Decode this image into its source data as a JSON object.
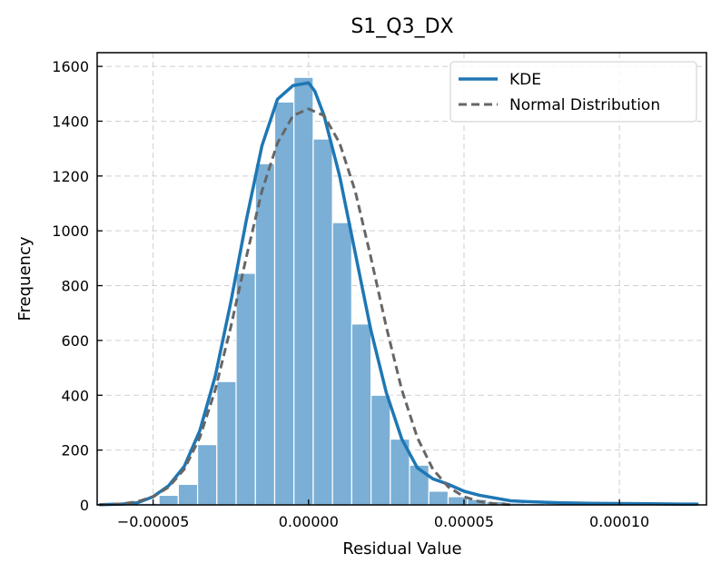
{
  "chart_data": {
    "type": "bar",
    "title": "S1_Q3_DX",
    "xlabel": "Residual Value",
    "ylabel": "Frequency",
    "xlim": [
      -6.8e-05,
      0.000128
    ],
    "ylim": [
      0,
      1650
    ],
    "grid": true,
    "legend_placement": "top-right",
    "x_ticks": [
      {
        "value": -5e-05,
        "label": "−0.00005"
      },
      {
        "value": 0.0,
        "label": "0.00000"
      },
      {
        "value": 5e-05,
        "label": "0.00005"
      },
      {
        "value": 0.0001,
        "label": "0.00010"
      }
    ],
    "y_ticks": [
      {
        "value": 0,
        "label": "0"
      },
      {
        "value": 200,
        "label": "200"
      },
      {
        "value": 400,
        "label": "400"
      },
      {
        "value": 600,
        "label": "600"
      },
      {
        "value": 800,
        "label": "800"
      },
      {
        "value": 1000,
        "label": "1000"
      },
      {
        "value": 1200,
        "label": "1200"
      },
      {
        "value": 1400,
        "label": "1400"
      },
      {
        "value": 1600,
        "label": "1600"
      }
    ],
    "bin_width": 6.2e-06,
    "bins": [
      {
        "x": -6.67e-05,
        "value": 2
      },
      {
        "x": -6.05e-05,
        "value": 3
      },
      {
        "x": -5.43e-05,
        "value": 6
      },
      {
        "x": -4.81e-05,
        "value": 35
      },
      {
        "x": -4.19e-05,
        "value": 75
      },
      {
        "x": -3.57e-05,
        "value": 220
      },
      {
        "x": -2.95e-05,
        "value": 450
      },
      {
        "x": -2.33e-05,
        "value": 845
      },
      {
        "x": -1.71e-05,
        "value": 1245
      },
      {
        "x": -1.09e-05,
        "value": 1470
      },
      {
        "x": -4.7e-06,
        "value": 1560
      },
      {
        "x": 1.5e-06,
        "value": 1335
      },
      {
        "x": 7.7e-06,
        "value": 1030
      },
      {
        "x": 1.39e-05,
        "value": 660
      },
      {
        "x": 2.01e-05,
        "value": 400
      },
      {
        "x": 2.63e-05,
        "value": 240
      },
      {
        "x": 3.25e-05,
        "value": 145
      },
      {
        "x": 3.87e-05,
        "value": 50
      },
      {
        "x": 4.49e-05,
        "value": 30
      },
      {
        "x": 5.11e-05,
        "value": 20
      },
      {
        "x": 5.73e-05,
        "value": 12
      },
      {
        "x": 6.35e-05,
        "value": 7
      },
      {
        "x": 6.97e-05,
        "value": 5
      },
      {
        "x": 7.59e-05,
        "value": 3
      },
      {
        "x": 8.21e-05,
        "value": 2
      },
      {
        "x": 8.83e-05,
        "value": 2
      },
      {
        "x": 9.45e-05,
        "value": 1
      },
      {
        "x": 0.0001007,
        "value": 1
      },
      {
        "x": 0.0001069,
        "value": 1
      },
      {
        "x": 0.0001131,
        "value": 1
      },
      {
        "x": 0.0001193,
        "value": 1
      }
    ],
    "series": [
      {
        "name": "KDE",
        "style": "solid",
        "color": "#1f77b4",
        "points": [
          [
            -6.7e-05,
            1
          ],
          [
            -6e-05,
            3
          ],
          [
            -5.5e-05,
            8
          ],
          [
            -5e-05,
            30
          ],
          [
            -4.5e-05,
            70
          ],
          [
            -4e-05,
            140
          ],
          [
            -3.5e-05,
            270
          ],
          [
            -3e-05,
            470
          ],
          [
            -2.5e-05,
            740
          ],
          [
            -2e-05,
            1040
          ],
          [
            -1.5e-05,
            1310
          ],
          [
            -1e-05,
            1480
          ],
          [
            -5e-06,
            1530
          ],
          [
            0.0,
            1540
          ],
          [
            2e-06,
            1510
          ],
          [
            5e-06,
            1420
          ],
          [
            1e-05,
            1200
          ],
          [
            1.5e-05,
            920
          ],
          [
            2e-05,
            640
          ],
          [
            2.5e-05,
            410
          ],
          [
            3e-05,
            240
          ],
          [
            3.5e-05,
            135
          ],
          [
            4e-05,
            95
          ],
          [
            4.5e-05,
            75
          ],
          [
            5e-05,
            50
          ],
          [
            5.5e-05,
            35
          ],
          [
            6e-05,
            25
          ],
          [
            6.5e-05,
            15
          ],
          [
            7e-05,
            12
          ],
          [
            8e-05,
            8
          ],
          [
            9e-05,
            6
          ],
          [
            0.0001,
            5
          ],
          [
            0.00011,
            4
          ],
          [
            0.00012,
            3
          ],
          [
            0.000125,
            3
          ]
        ]
      },
      {
        "name": "Normal Distribution",
        "style": "dashed",
        "color": "#666666",
        "points": [
          [
            -6.7e-05,
            1
          ],
          [
            -6e-05,
            4
          ],
          [
            -5.5e-05,
            12
          ],
          [
            -5e-05,
            30
          ],
          [
            -4.5e-05,
            65
          ],
          [
            -4e-05,
            130
          ],
          [
            -3.5e-05,
            245
          ],
          [
            -3e-05,
            420
          ],
          [
            -2.5e-05,
            650
          ],
          [
            -2e-05,
            905
          ],
          [
            -1.5e-05,
            1145
          ],
          [
            -1e-05,
            1320
          ],
          [
            -5e-06,
            1420
          ],
          [
            0.0,
            1445
          ],
          [
            5e-06,
            1420
          ],
          [
            1e-05,
            1320
          ],
          [
            1.5e-05,
            1145
          ],
          [
            2e-05,
            905
          ],
          [
            2.5e-05,
            650
          ],
          [
            3e-05,
            420
          ],
          [
            3.5e-05,
            245
          ],
          [
            4e-05,
            130
          ],
          [
            4.5e-05,
            65
          ],
          [
            5e-05,
            30
          ],
          [
            5.5e-05,
            12
          ],
          [
            6e-05,
            4
          ],
          [
            6.5e-05,
            1
          ]
        ]
      }
    ]
  },
  "colors": {
    "bar_fill": "#7bafd6",
    "bar_edge": "#ffffff",
    "kde": "#1f77b4",
    "normal": "#666666"
  }
}
